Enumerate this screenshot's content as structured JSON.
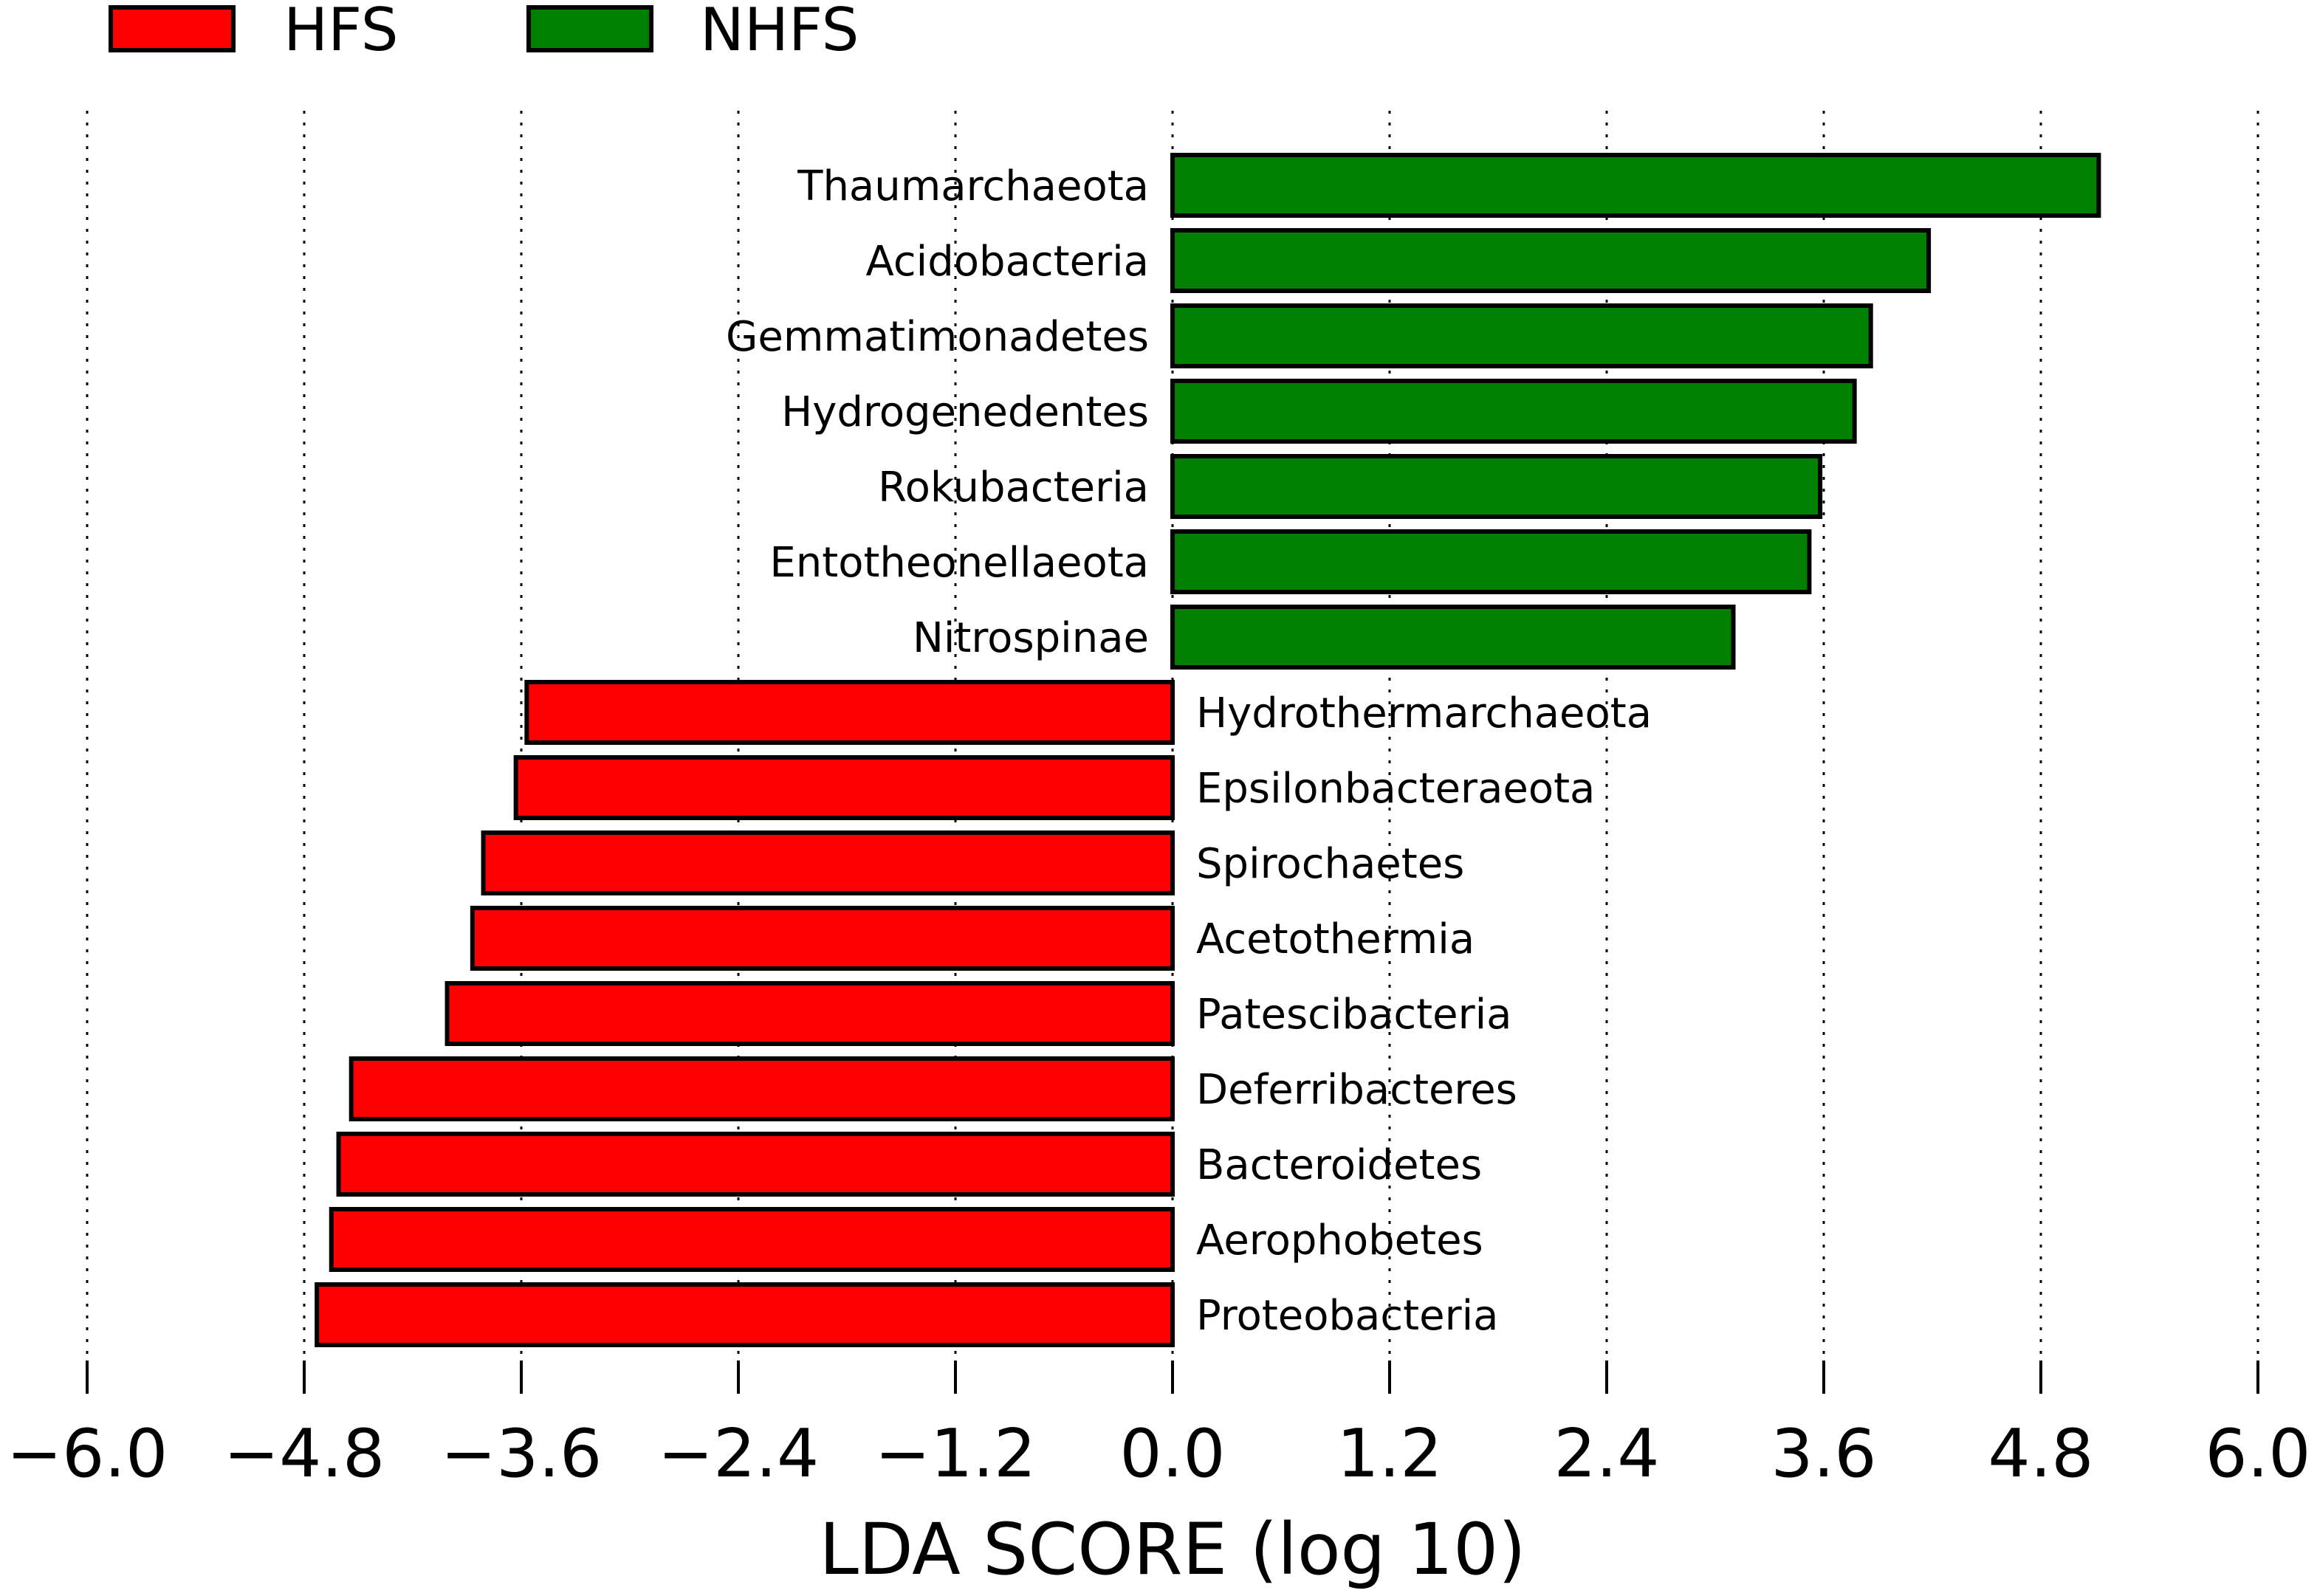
{
  "chart_data": {
    "type": "bar",
    "orientation": "horizontal",
    "xlabel": "LDA SCORE (log 10)",
    "xlim": [
      -6.0,
      6.0
    ],
    "xticks": [
      -6.0,
      -4.8,
      -3.6,
      -2.4,
      -1.2,
      0.0,
      1.2,
      2.4,
      3.6,
      4.8,
      6.0
    ],
    "xtick_labels": [
      "−6.0",
      "−4.8",
      "−3.6",
      "−2.4",
      "−1.2",
      "0.0",
      "1.2",
      "2.4",
      "3.6",
      "4.8",
      "6.0"
    ],
    "grid": "vertical dotted",
    "legend_position": "top-left",
    "series": [
      {
        "name": "HFS",
        "color": "#ff0000"
      },
      {
        "name": "NHFS",
        "color": "#007f00"
      }
    ],
    "categories": [
      "Thaumarchaeota",
      "Acidobacteria",
      "Gemmatimonadetes",
      "Hydrogenedentes",
      "Rokubacteria",
      "Entotheonellaeota",
      "Nitrospinae",
      "Hydrothermarchaeota",
      "Epsilonbacteraeota",
      "Spirochaetes",
      "Acetothermia",
      "Patescibacteria",
      "Deferribacteres",
      "Bacteroidetes",
      "Aerophobetes",
      "Proteobacteria"
    ],
    "values": [
      5.12,
      4.18,
      3.86,
      3.77,
      3.58,
      3.52,
      3.1,
      -3.57,
      -3.63,
      -3.81,
      -3.87,
      -4.01,
      -4.54,
      -4.61,
      -4.65,
      -4.73
    ],
    "groups": [
      "NHFS",
      "NHFS",
      "NHFS",
      "NHFS",
      "NHFS",
      "NHFS",
      "NHFS",
      "HFS",
      "HFS",
      "HFS",
      "HFS",
      "HFS",
      "HFS",
      "HFS",
      "HFS",
      "HFS"
    ]
  }
}
